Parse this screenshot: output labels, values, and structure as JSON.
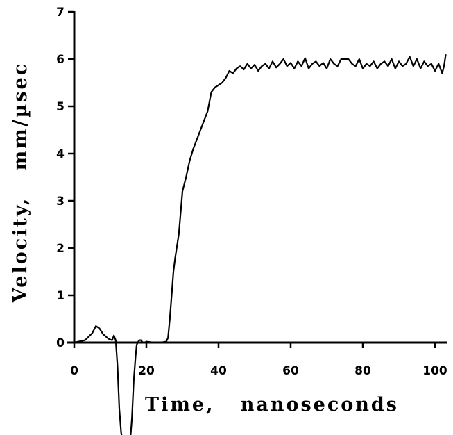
{
  "chart_data": {
    "type": "line",
    "title": "",
    "xlabel": "Time,   nanoseconds",
    "ylabel": "Velocity,   mm/µsec",
    "xlim": [
      0,
      103
    ],
    "ylim": [
      -2.3,
      7
    ],
    "xticks": [
      0,
      20,
      40,
      60,
      80,
      100
    ],
    "yticks": [
      0,
      1,
      2,
      3,
      4,
      5,
      6,
      7
    ],
    "grid": false,
    "series": [
      {
        "x": [
          0,
          3,
          5,
          6,
          7,
          8,
          9.5,
          10.5,
          11,
          11.5,
          12,
          12.5,
          13,
          13.3,
          13.8,
          14.5,
          15,
          15.5,
          16,
          16.5,
          17,
          17.3,
          17.6,
          18,
          18.5,
          19,
          19.5,
          20,
          22,
          24,
          25.5,
          26,
          26.5,
          27,
          27.5,
          28,
          29,
          30,
          31,
          32,
          33,
          34,
          35,
          36,
          37,
          38,
          38.5,
          39,
          40,
          41,
          42,
          43,
          44,
          45,
          46,
          47,
          48,
          49,
          50,
          51,
          52,
          53,
          54,
          55,
          56,
          57,
          58,
          59,
          60,
          61,
          62,
          63,
          64,
          65,
          66,
          67,
          68,
          69,
          70,
          71,
          72,
          73,
          74,
          75,
          76,
          77,
          78,
          79,
          80,
          81,
          82,
          83,
          84,
          85,
          86,
          87,
          88,
          89,
          90,
          91,
          92,
          93,
          94,
          95,
          96,
          97,
          98,
          99,
          100,
          101,
          102,
          102.5,
          103
        ],
        "y": [
          0,
          0.05,
          0.2,
          0.35,
          0.3,
          0.18,
          0.08,
          0.05,
          0.15,
          0.05,
          -0.5,
          -1.4,
          -1.9,
          -2.05,
          -2.2,
          -2.3,
          -2.25,
          -2.1,
          -1.6,
          -0.8,
          -0.3,
          -0.05,
          0.0,
          0.05,
          0.05,
          0.0,
          0.0,
          0.02,
          0.0,
          0.0,
          0.02,
          0.1,
          0.5,
          1.0,
          1.5,
          1.8,
          2.3,
          3.2,
          3.5,
          3.85,
          4.1,
          4.3,
          4.5,
          4.7,
          4.9,
          5.3,
          5.35,
          5.4,
          5.45,
          5.5,
          5.6,
          5.75,
          5.7,
          5.8,
          5.85,
          5.78,
          5.9,
          5.8,
          5.88,
          5.75,
          5.85,
          5.9,
          5.8,
          5.95,
          5.82,
          5.9,
          6.0,
          5.85,
          5.92,
          5.8,
          5.95,
          5.85,
          6.02,
          5.8,
          5.9,
          5.95,
          5.85,
          5.92,
          5.8,
          6.0,
          5.9,
          5.85,
          6.0,
          6.0,
          6.0,
          5.9,
          5.85,
          6.0,
          5.8,
          5.9,
          5.85,
          5.95,
          5.8,
          5.9,
          5.95,
          5.85,
          6.0,
          5.8,
          5.95,
          5.85,
          5.9,
          6.05,
          5.85,
          6.0,
          5.8,
          5.95,
          5.85,
          5.9,
          5.75,
          5.9,
          5.7,
          5.85,
          6.1
        ]
      }
    ]
  }
}
